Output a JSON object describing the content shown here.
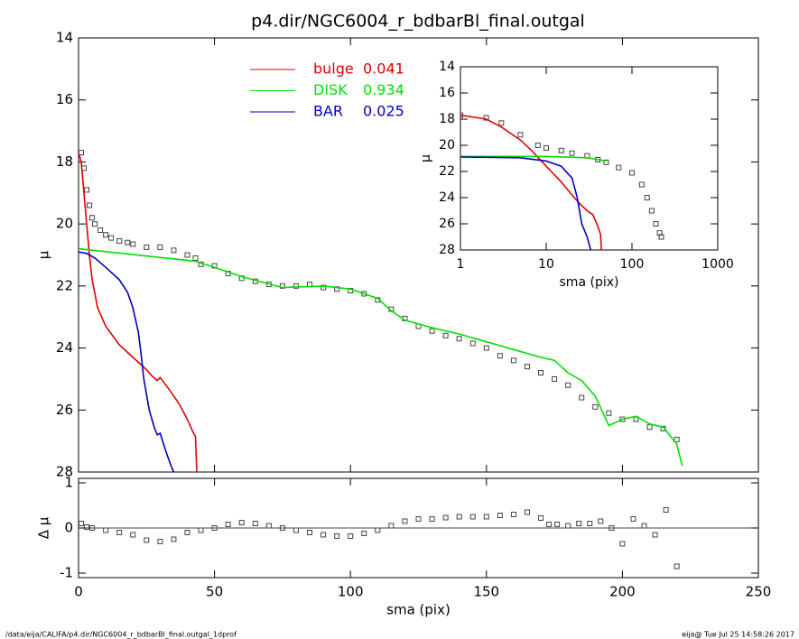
{
  "title": "p4.dir/NGC6004_r_bdbarBl_final.outgal",
  "footer": {
    "left": "/data/eija/CALIFA/p4.dir/NGC6004_r_bdbarBl_final.outgal_1dprof",
    "right": "eija@  Tue Jul 25 14:58:26 2017"
  },
  "chart_data": [
    {
      "type": "line",
      "ylabel": "μ",
      "xlim": [
        0,
        250
      ],
      "ylim": [
        14,
        28
      ],
      "y_reversed": true,
      "xscale": "linear",
      "xticks": [
        0,
        50,
        100,
        150,
        200,
        250
      ],
      "xtick_labels": false,
      "yticks": [
        14,
        16,
        18,
        20,
        22,
        24,
        26,
        28
      ],
      "legend": "upper center",
      "series": [
        {
          "mode": "markers",
          "color": "#444444",
          "x": [
            1,
            2,
            3,
            4,
            5,
            6,
            8,
            10,
            12,
            15,
            18,
            20,
            25,
            30,
            35,
            40,
            43,
            45,
            50,
            55,
            60,
            65,
            70,
            75,
            80,
            85,
            90,
            95,
            100,
            105,
            110,
            115,
            120,
            125,
            130,
            135,
            140,
            145,
            150,
            155,
            160,
            165,
            170,
            175,
            180,
            185,
            190,
            195,
            200,
            205,
            210,
            215,
            220
          ],
          "values": [
            17.7,
            18.2,
            18.9,
            19.4,
            19.8,
            20.0,
            20.2,
            20.35,
            20.45,
            20.55,
            20.6,
            20.65,
            20.75,
            20.75,
            20.85,
            21.0,
            21.1,
            21.3,
            21.35,
            21.6,
            21.75,
            21.85,
            21.95,
            22.0,
            22.0,
            21.95,
            22.05,
            22.1,
            22.15,
            22.25,
            22.45,
            22.75,
            23.05,
            23.3,
            23.45,
            23.6,
            23.7,
            23.85,
            24.0,
            24.25,
            24.4,
            24.6,
            24.8,
            25.0,
            25.2,
            25.6,
            25.9,
            26.1,
            26.3,
            26.3,
            26.55,
            26.6,
            26.95
          ]
        },
        {
          "name": "bulge",
          "fraction": 0.041,
          "mode": "lines",
          "color": "#e00000",
          "x": [
            0,
            1,
            2,
            3,
            4,
            5,
            7,
            10,
            15,
            20,
            25,
            27,
            29,
            30,
            33,
            37,
            40,
            42,
            43,
            43.5
          ],
          "values": [
            17.7,
            18.0,
            19.0,
            20.0,
            21.0,
            21.8,
            22.7,
            23.3,
            23.9,
            24.3,
            24.7,
            24.9,
            25.05,
            24.95,
            25.3,
            25.8,
            26.3,
            26.7,
            26.85,
            28
          ]
        },
        {
          "name": "DISK",
          "fraction": 0.934,
          "mode": "lines",
          "color": "#00e000",
          "x": [
            0,
            43,
            50,
            60,
            75,
            90,
            100,
            110,
            115,
            120,
            130,
            140,
            150,
            160,
            170,
            175,
            180,
            185,
            190,
            195,
            200,
            205,
            210,
            215,
            220,
            222
          ],
          "values": [
            20.8,
            21.2,
            21.4,
            21.7,
            22.05,
            22.0,
            22.1,
            22.4,
            22.8,
            23.1,
            23.35,
            23.55,
            23.8,
            24.05,
            24.3,
            24.4,
            24.8,
            25.05,
            25.55,
            26.5,
            26.3,
            26.2,
            26.45,
            26.55,
            27.1,
            27.8
          ]
        },
        {
          "name": "BAR",
          "fraction": 0.025,
          "mode": "lines",
          "color": "#0000c0",
          "x": [
            0,
            3,
            6,
            10,
            15,
            18,
            20,
            22,
            23,
            24,
            26,
            28,
            29,
            30,
            32,
            34,
            35
          ],
          "values": [
            20.9,
            20.95,
            21.1,
            21.4,
            21.8,
            22.2,
            22.7,
            23.5,
            24.2,
            25.0,
            26.0,
            26.6,
            26.8,
            26.75,
            27.3,
            27.8,
            28
          ]
        }
      ]
    },
    {
      "type": "line",
      "ylabel": "Δ μ",
      "xlabel": "sma (pix)",
      "xlim": [
        0,
        250
      ],
      "ylim": [
        -1.1,
        1.1
      ],
      "xscale": "linear",
      "xticks": [
        0,
        50,
        100,
        150,
        200,
        250
      ],
      "yticks": [
        -1,
        0,
        1
      ],
      "zero_line": true,
      "series": [
        {
          "mode": "markers",
          "color": "#444444",
          "x": [
            1,
            3,
            5,
            10,
            15,
            20,
            25,
            30,
            35,
            40,
            45,
            50,
            55,
            60,
            65,
            70,
            75,
            80,
            85,
            90,
            95,
            100,
            105,
            110,
            115,
            120,
            125,
            130,
            135,
            140,
            145,
            150,
            155,
            160,
            165,
            170,
            173,
            176,
            180,
            184,
            188,
            192,
            196,
            200,
            204,
            208,
            212,
            216,
            220
          ],
          "values": [
            0.1,
            0.02,
            0.0,
            -0.05,
            -0.1,
            -0.15,
            -0.27,
            -0.3,
            -0.25,
            -0.1,
            -0.05,
            0.0,
            0.08,
            0.12,
            0.1,
            0.05,
            0.0,
            -0.05,
            -0.1,
            -0.15,
            -0.18,
            -0.18,
            -0.12,
            -0.05,
            0.05,
            0.15,
            0.2,
            0.2,
            0.23,
            0.25,
            0.25,
            0.25,
            0.28,
            0.3,
            0.35,
            0.22,
            0.08,
            0.08,
            0.05,
            0.1,
            0.1,
            0.15,
            0.0,
            -0.35,
            0.2,
            0.05,
            -0.15,
            0.4,
            -0.85
          ]
        }
      ]
    },
    {
      "type": "line",
      "ylabel": "μ",
      "xlabel": "sma (pix)",
      "xlim": [
        1,
        1000
      ],
      "ylim": [
        14,
        28
      ],
      "y_reversed": true,
      "xscale": "log",
      "xticks": [
        1,
        10,
        100,
        1000
      ],
      "yticks": [
        14,
        16,
        18,
        20,
        22,
        24,
        26,
        28
      ],
      "series": [
        {
          "mode": "markers",
          "color": "#444444",
          "x": [
            1,
            2,
            3,
            5,
            8,
            10,
            15,
            20,
            30,
            40,
            50,
            70,
            100,
            130,
            150,
            170,
            190,
            210,
            220
          ],
          "values": [
            17.7,
            17.9,
            18.3,
            19.2,
            20.0,
            20.2,
            20.4,
            20.6,
            20.8,
            21.1,
            21.3,
            21.7,
            22.1,
            23.0,
            24.0,
            25.0,
            26.0,
            26.7,
            27.0
          ]
        },
        {
          "mode": "lines",
          "color": "#e00000",
          "x": [
            1,
            2,
            3,
            5,
            7,
            10,
            15,
            20,
            25,
            30,
            35,
            40,
            43,
            44
          ],
          "values": [
            17.7,
            18.0,
            18.6,
            19.6,
            20.5,
            21.6,
            22.8,
            23.8,
            24.5,
            25.0,
            25.3,
            26.2,
            26.8,
            28
          ]
        },
        {
          "mode": "lines",
          "color": "#00e000",
          "x": [
            1,
            10,
            30,
            50
          ],
          "values": [
            20.85,
            20.85,
            20.95,
            21.2
          ]
        },
        {
          "mode": "lines",
          "color": "#0000c0",
          "x": [
            1,
            5,
            10,
            15,
            20,
            23,
            26,
            30,
            33
          ],
          "values": [
            20.9,
            20.95,
            21.2,
            21.6,
            22.5,
            24,
            26,
            27,
            28
          ]
        }
      ]
    }
  ]
}
